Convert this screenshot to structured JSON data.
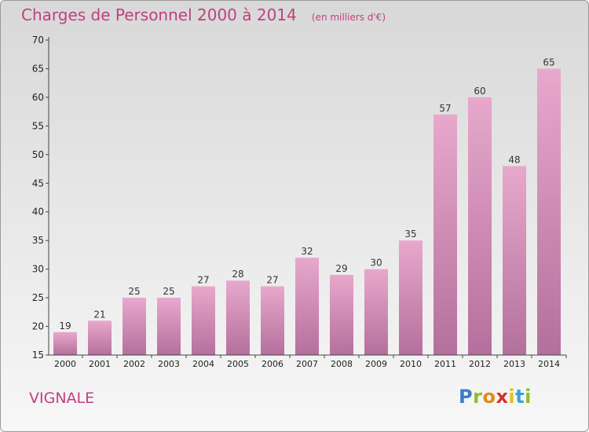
{
  "header": {
    "title": "Charges de Personnel 2000 à 2014",
    "subtitle": "(en milliers d'€)"
  },
  "footer": {
    "city": "VIGNALE",
    "logo_text": "Proxiti"
  },
  "colors": {
    "title": "#c0407f",
    "bar_top": "#e8a8cc",
    "bar_bottom": "#b4709c",
    "axis": "#444444"
  },
  "chart_data": {
    "type": "bar",
    "categories": [
      "2000",
      "2001",
      "2002",
      "2003",
      "2004",
      "2005",
      "2006",
      "2007",
      "2008",
      "2009",
      "2010",
      "2011",
      "2012",
      "2013",
      "2014"
    ],
    "values": [
      19,
      21,
      25,
      25,
      27,
      28,
      27,
      32,
      29,
      30,
      35,
      57,
      60,
      48,
      65
    ],
    "ylim": [
      15,
      70
    ],
    "yticks": [
      15,
      20,
      25,
      30,
      35,
      40,
      45,
      50,
      55,
      60,
      65,
      70
    ],
    "grid": false,
    "data_labels": true
  }
}
